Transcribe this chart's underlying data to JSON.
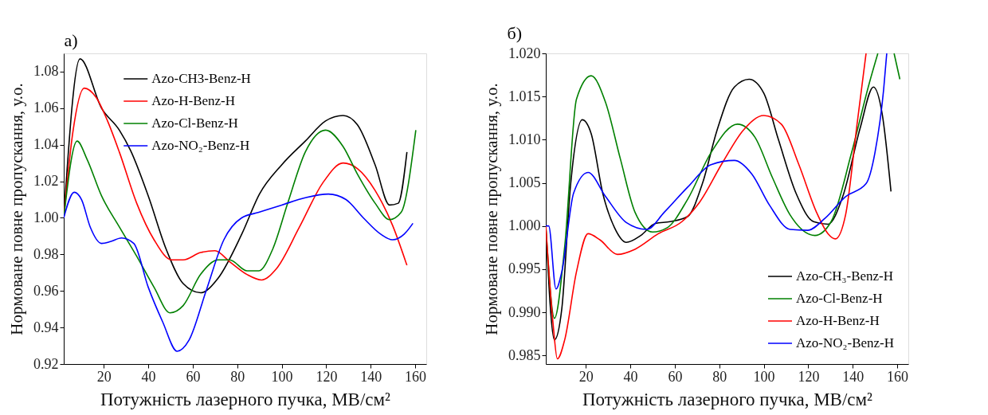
{
  "chart_data": [
    {
      "type": "line",
      "title": "a)",
      "xlabel": "Потужність лазерного пучка, МВ/см²",
      "ylabel": "Нормоване повне пропускання, у.о.",
      "xlim": [
        2,
        165
      ],
      "xticks": [
        20,
        40,
        60,
        80,
        100,
        120,
        140,
        160
      ],
      "ylim": [
        0.92,
        1.09
      ],
      "yticks": [
        {
          "value": 0.92,
          "label": "0.92"
        },
        {
          "value": 0.94,
          "label": "0.94"
        },
        {
          "value": 0.96,
          "label": "0.96"
        },
        {
          "value": 0.98,
          "label": "0.98"
        },
        {
          "value": 1.0,
          "label": "1.00"
        },
        {
          "value": 1.02,
          "label": "1.02"
        },
        {
          "value": 1.04,
          "label": "1.04"
        },
        {
          "value": 1.06,
          "label": "1.06"
        },
        {
          "value": 1.08,
          "label": "1.08"
        }
      ],
      "grid": false,
      "legend": "top",
      "marker": "none",
      "line_style": "solid",
      "series": [
        {
          "name": "Azo-CH3-Benz-H",
          "color": "#000000",
          "x": [
            2,
            9.3,
            19,
            27,
            32,
            40,
            48,
            55.7,
            63.5,
            71.4,
            82,
            90,
            100,
            110.6,
            119.7,
            127.6,
            134,
            142,
            148.5,
            152.4,
            156.3
          ],
          "values": [
            1.0,
            1.087,
            1.06,
            1.048,
            1.037,
            1.012,
            0.983,
            0.964,
            0.959,
            0.967,
            0.991,
            1.013,
            1.029,
            1.042,
            1.053,
            1.056,
            1.051,
            1.029,
            1.007,
            1.008,
            1.036
          ]
        },
        {
          "name": "Azo-H-Benz-H",
          "color": "#ff0000",
          "x": [
            2,
            6,
            11.2,
            16.5,
            21.7,
            27,
            34.8,
            42.6,
            50.5,
            55.7,
            63.5,
            70,
            76.6,
            84.4,
            91,
            97.5,
            108,
            118.4,
            127.6,
            134,
            142,
            149.8,
            156.3
          ],
          "values": [
            1.0,
            1.046,
            1.071,
            1.066,
            1.053,
            1.036,
            1.008,
            0.988,
            0.977,
            0.977,
            0.981,
            0.982,
            0.976,
            0.969,
            0.966,
            0.972,
            0.995,
            1.019,
            1.03,
            1.027,
            1.015,
            0.996,
            0.974
          ]
        },
        {
          "name": "Azo-Cl-Benz-H",
          "color": "#008000",
          "x": [
            2,
            8,
            12.5,
            19,
            27,
            34.8,
            42.6,
            49.8,
            55.7,
            63.5,
            71.4,
            76.6,
            84.4,
            89.7,
            96,
            102.7,
            110.6,
            119.7,
            127.6,
            134,
            142,
            148.5,
            153.7,
            160.3
          ],
          "values": [
            1.0,
            1.042,
            1.032,
            1.012,
            0.995,
            0.979,
            0.962,
            0.948,
            0.952,
            0.969,
            0.977,
            0.977,
            0.971,
            0.971,
            0.983,
            1.008,
            1.036,
            1.048,
            1.039,
            1.024,
            1.008,
            0.999,
            1.003,
            1.048
          ]
        },
        {
          "name": "Azo-NO₂-Benz-H",
          "color": "#0000ff",
          "x": [
            2,
            6.7,
            10,
            13.9,
            19,
            23,
            28,
            33.5,
            40,
            46.5,
            53,
            58.3,
            66,
            74,
            82,
            89.7,
            100,
            110.6,
            121,
            128.9,
            136.7,
            144.6,
            149.8,
            155,
            159
          ],
          "values": [
            1.0,
            1.014,
            1.01,
            0.995,
            0.986,
            0.987,
            0.989,
            0.986,
            0.962,
            0.943,
            0.927,
            0.933,
            0.96,
            0.988,
            1.0,
            1.003,
            1.007,
            1.011,
            1.013,
            1.01,
            1.0,
            0.991,
            0.988,
            0.991,
            0.997
          ]
        }
      ]
    },
    {
      "type": "line",
      "title": "б)",
      "xlabel": "Потужність лазерного пучка, МВ/см²",
      "ylabel": "Нормоване повне пропускання, у.о.",
      "xlim": [
        2,
        165
      ],
      "xticks": [
        20,
        40,
        60,
        80,
        100,
        120,
        140,
        160
      ],
      "ylim": [
        0.984,
        1.02
      ],
      "yticks": [
        {
          "value": 0.985,
          "label": "0.985"
        },
        {
          "value": 0.99,
          "label": "0.990"
        },
        {
          "value": 0.995,
          "label": "0.995"
        },
        {
          "value": 1.0,
          "label": "1.000"
        },
        {
          "value": 1.005,
          "label": "1.005"
        },
        {
          "value": 1.01,
          "label": "1.010"
        },
        {
          "value": 1.015,
          "label": "1.015"
        },
        {
          "value": 1.02,
          "label": "1.020"
        }
      ],
      "grid": false,
      "legend": "bottom right",
      "marker": "none",
      "line_style": "solid",
      "series": [
        {
          "name": "Azo-CH₃-Benz-H",
          "color": "#000000",
          "x": [
            2,
            5.9,
            9.2,
            13.2,
            18.4,
            22.4,
            27.6,
            32.9,
            38.2,
            44.7,
            51.3,
            57.9,
            65.8,
            72.4,
            79,
            86.8,
            93.4,
            100,
            106.6,
            114.5,
            122.4,
            128.9,
            135.5,
            143.4,
            149.3,
            153.3,
            157.2
          ],
          "values": [
            1.0,
            0.9868,
            0.9904,
            1.0049,
            1.0123,
            1.0107,
            1.0038,
            0.9998,
            0.9981,
            0.9989,
            1.0003,
            1.0005,
            1.0011,
            1.0049,
            1.0111,
            1.0161,
            1.017,
            1.0154,
            1.01,
            1.0038,
            1.0005,
            1.0002,
            1.0034,
            1.0114,
            1.0161,
            1.0129,
            1.004
          ]
        },
        {
          "name": "Azo-Cl-Benz-H",
          "color": "#008000",
          "x": [
            2,
            5.9,
            10.5,
            15.8,
            22.4,
            28.9,
            35.5,
            42.1,
            50,
            56.6,
            65.8,
            76.3,
            88.2,
            96,
            103.9,
            111.8,
            123,
            130.3,
            139.5,
            147.4,
            151.3,
            155,
            158.6,
            161.2
          ],
          "values": [
            1.0,
            0.9893,
            0.9976,
            1.0147,
            1.0174,
            1.0143,
            1.0078,
            1.0016,
            0.9993,
            0.9998,
            1.0031,
            1.0085,
            1.0118,
            1.0103,
            1.0056,
            1.0013,
            0.9989,
            1.0005,
            1.0085,
            1.0165,
            1.02,
            null,
            1.02,
            1.017
          ]
        },
        {
          "name": "Azo-H-Benz-H",
          "color": "#ff0000",
          "x": [
            2,
            5.3,
            7.2,
            10.5,
            15.8,
            21,
            26.3,
            34.2,
            42.1,
            52.6,
            63.2,
            71,
            81.6,
            90.8,
            100,
            107.9,
            115.8,
            123.7,
            128.9,
            132.2,
            136.8,
            142.1,
            146
          ],
          "values": [
            1.0,
            0.9886,
            0.9846,
            0.9868,
            0.9947,
            0.9991,
            0.9984,
            0.9967,
            0.9973,
            0.9991,
            1.0005,
            1.0027,
            1.0074,
            1.0111,
            1.0128,
            1.0118,
            1.0071,
            1.0016,
            0.9991,
            0.9985,
            1.0013,
            1.0121,
            1.02
          ]
        },
        {
          "name": "Azo-NO₂-Benz-H",
          "color": "#0000ff",
          "x": [
            2,
            3.3,
            6.6,
            9.2,
            14.5,
            21,
            28.9,
            38.2,
            47.4,
            55.3,
            65.8,
            76.3,
            86.8,
            94.7,
            102.6,
            111.8,
            119.7,
            127.6,
            136.8,
            146,
            150,
            153.9,
            155.3
          ],
          "values": [
            1.0,
            1.0,
            0.9927,
            0.9947,
            1.0038,
            1.0062,
            1.0034,
            1.0004,
            0.9996,
            1.0016,
            1.0045,
            1.0071,
            1.0076,
            1.006,
            1.0024,
            0.9996,
            0.9995,
            1.0009,
            1.0034,
            1.0049,
            1.0085,
            1.0158,
            1.02
          ]
        }
      ]
    }
  ]
}
